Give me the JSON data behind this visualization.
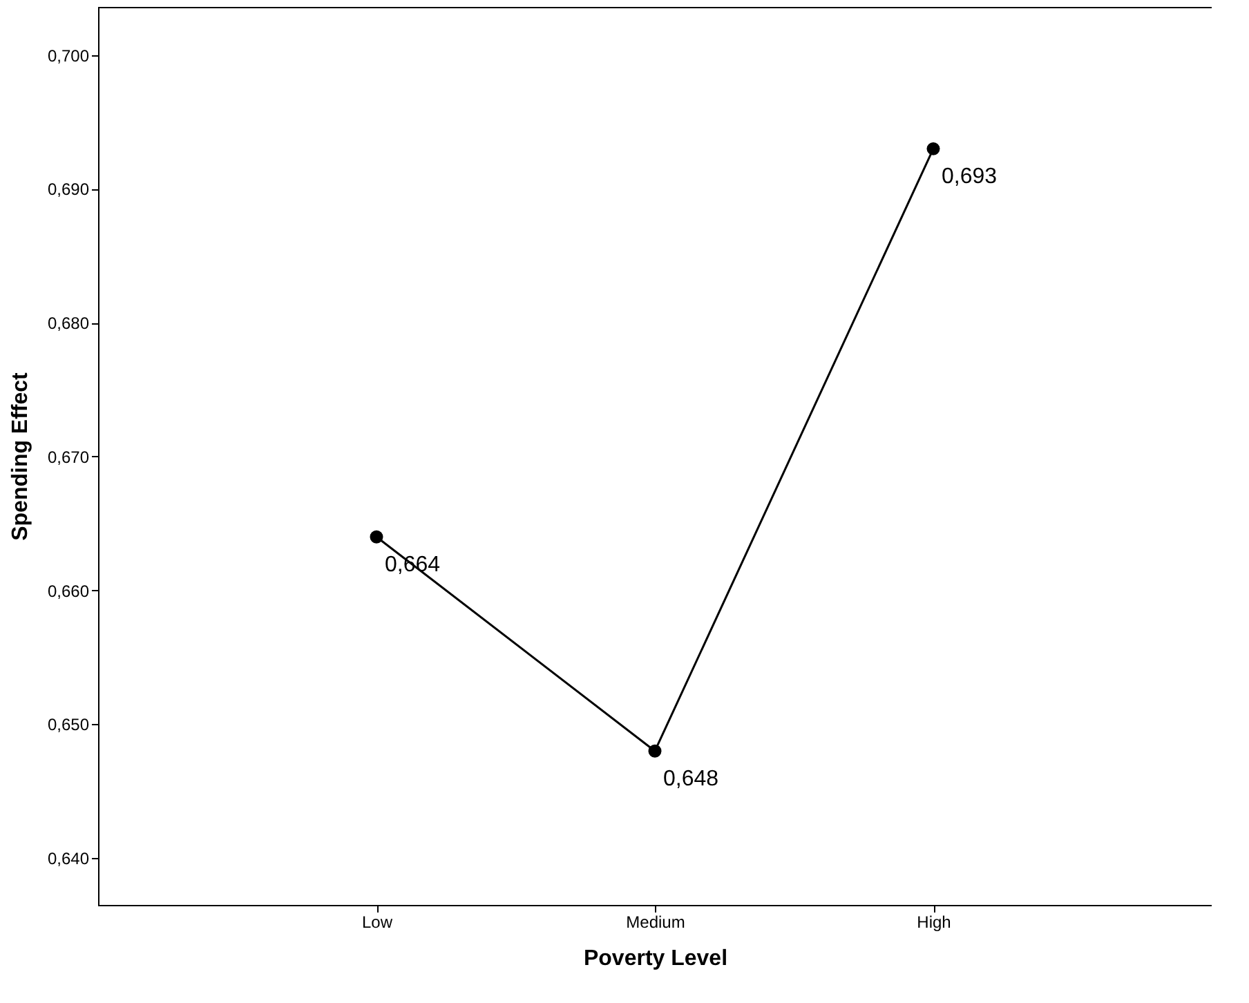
{
  "chart_data": {
    "type": "line",
    "xlabel": "Poverty Level",
    "ylabel": "Spending Effect",
    "categories": [
      "Low",
      "Medium",
      "High"
    ],
    "series": [
      {
        "color": "#000000",
        "values": [
          0.664,
          0.648,
          0.693
        ],
        "value_labels": [
          "0,664",
          "0,648",
          "0,693"
        ]
      }
    ],
    "ylim": [
      0.6365,
      0.7036
    ],
    "yticks": [
      {
        "value": 0.64,
        "label": "0,640"
      },
      {
        "value": 0.65,
        "label": "0,650"
      },
      {
        "value": 0.66,
        "label": "0,660"
      },
      {
        "value": 0.67,
        "label": "0,670"
      },
      {
        "value": 0.68,
        "label": "0,680"
      },
      {
        "value": 0.69,
        "label": "0,690"
      },
      {
        "value": 0.7,
        "label": "0,700"
      }
    ],
    "grid": false,
    "marker": "circle",
    "line_style": "solid"
  }
}
